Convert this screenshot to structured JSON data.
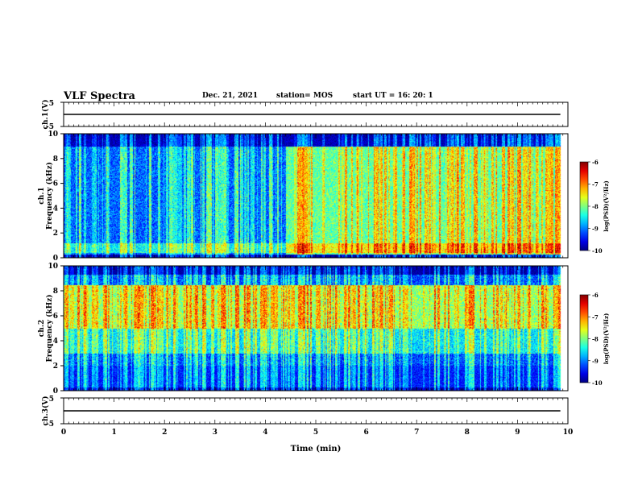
{
  "header": {
    "title": "VLF Spectra",
    "date": "Dec. 21, 2021",
    "station": "station= MOS",
    "start": "start  UT  =   16: 20: 1"
  },
  "chart_data": [
    {
      "type": "line",
      "name": "ch1-waveform",
      "ylabel": "ch.1(V)",
      "ylim": [
        -5,
        5
      ],
      "yticks": [
        "5",
        "-5"
      ],
      "x": [
        0,
        9.85
      ],
      "values": [
        0,
        0
      ]
    },
    {
      "type": "heatmap",
      "name": "ch1-spectrogram",
      "ylabel": "ch.1\nFrequency  (kHz)",
      "ylim": [
        0,
        10
      ],
      "yticks": [
        "0",
        "2",
        "4",
        "6",
        "8",
        "10"
      ],
      "xlim": [
        0,
        10
      ],
      "data_end_min": 9.85,
      "colorbar": {
        "label": "log(PSD)(V²/Hz)",
        "range": [
          -10,
          -6
        ],
        "ticks": [
          "-6",
          "-7",
          "-8",
          "-9",
          "-10"
        ]
      },
      "background_level_before_4.4min": -9.1,
      "background_level_after_4.4min": -8.1,
      "band_kHz": [
        0.3,
        9.0
      ]
    },
    {
      "type": "heatmap",
      "name": "ch2-spectrogram",
      "ylabel": "ch.2\nFrequency  (kHz)",
      "ylim": [
        0,
        10
      ],
      "yticks": [
        "0",
        "2",
        "4",
        "6",
        "8",
        "10"
      ],
      "xlim": [
        0,
        10
      ],
      "data_end_min": 9.85,
      "colorbar": {
        "label": "log(PSD)(V²/Hz)",
        "range": [
          -10,
          -6
        ],
        "ticks": [
          "-6",
          "-7",
          "-8",
          "-9",
          "-10"
        ]
      },
      "peak_band_kHz": [
        6.0,
        8.0
      ],
      "peak_level": -7.3
    },
    {
      "type": "line",
      "name": "ch3-waveform",
      "ylabel": "ch.3(V)",
      "ylim": [
        -5,
        5
      ],
      "yticks": [
        "5",
        "-5"
      ],
      "x": [
        0,
        9.85
      ],
      "values": [
        0,
        0
      ]
    }
  ],
  "xaxis": {
    "label": "Time  (min)",
    "ticks": [
      "0",
      "1",
      "2",
      "3",
      "4",
      "5",
      "6",
      "7",
      "8",
      "9",
      "10"
    ],
    "range": [
      0,
      10
    ]
  }
}
